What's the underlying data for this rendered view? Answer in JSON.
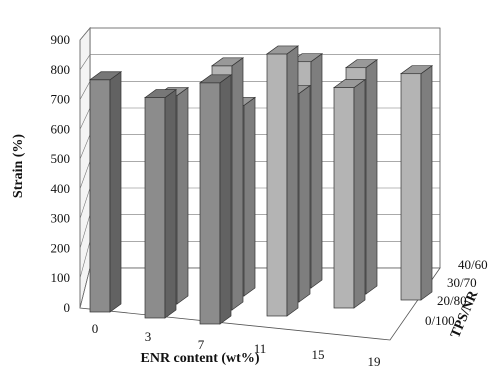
{
  "chart_data": {
    "type": "bar",
    "subtype": "3d-clustered-bar",
    "title": "",
    "xlabel": "ENR content (wt%)",
    "ylabel": "Strain (%)",
    "zlabel": "TPS/NR",
    "categories": [
      "0",
      "3",
      "7",
      "11",
      "15",
      "19"
    ],
    "series_labels": [
      "0/100",
      "20/80",
      "30/70",
      "40/60"
    ],
    "yticks": [
      "0",
      "100",
      "200",
      "300",
      "400",
      "500",
      "600",
      "700",
      "800",
      "900"
    ],
    "ylim": [
      0,
      900
    ],
    "grid": true,
    "series": [
      {
        "values": [
          780,
          740,
          810,
          null,
          null,
          null
        ],
        "color": "#8c8c8c"
      },
      {
        "values": [
          null,
          700,
          820,
          880,
          null,
          null
        ],
        "color": "#b4b4b4"
      },
      {
        "values": [
          null,
          null,
          640,
          700,
          740,
          null
        ],
        "color": "#b4b4b4"
      },
      {
        "values": [
          null,
          null,
          null,
          760,
          760,
          760
        ],
        "color": "#b4b4b4"
      }
    ]
  }
}
